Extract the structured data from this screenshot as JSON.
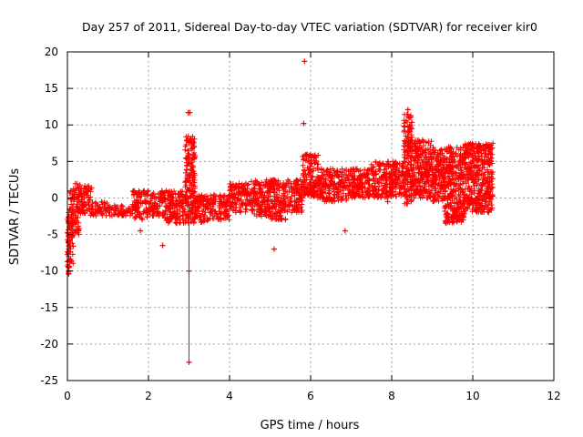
{
  "chart_data": {
    "type": "scatter",
    "title": "Day 257 of 2011, Sidereal Day-to-day VTEC variation (SDTVAR) for receiver kir0",
    "xlabel": "GPS time / hours",
    "ylabel": "SDTVAR / TECUs",
    "xlim": [
      0,
      12
    ],
    "ylim": [
      -25,
      20
    ],
    "xticks": [
      0,
      2,
      4,
      6,
      8,
      10,
      12
    ],
    "yticks": [
      -25,
      -20,
      -15,
      -10,
      -5,
      0,
      5,
      10,
      15,
      20
    ],
    "grid": true,
    "marker": "+",
    "color": "#ff0000",
    "series": [
      {
        "name": "SDTVAR",
        "bands": [
          {
            "x": [
              0.0,
              0.05
            ],
            "lo": -10.5,
            "hi": -1.5
          },
          {
            "x": [
              0.05,
              0.15
            ],
            "lo": -9.5,
            "hi": 1.0
          },
          {
            "x": [
              0.15,
              0.3
            ],
            "lo": -5.0,
            "hi": 2.0
          },
          {
            "x": [
              0.3,
              0.6
            ],
            "lo": -2.5,
            "hi": 1.8
          },
          {
            "x": [
              0.6,
              1.0
            ],
            "lo": -2.5,
            "hi": -0.5
          },
          {
            "x": [
              1.0,
              1.6
            ],
            "lo": -2.5,
            "hi": -1.0
          },
          {
            "x": [
              1.6,
              2.0
            ],
            "lo": -3.0,
            "hi": 1.0
          },
          {
            "x": [
              2.0,
              2.4
            ],
            "lo": -2.5,
            "hi": 1.0
          },
          {
            "x": [
              2.4,
              2.9
            ],
            "lo": -3.5,
            "hi": 1.0
          },
          {
            "x": [
              2.9,
              3.15
            ],
            "lo": -3.5,
            "hi": 8.5
          },
          {
            "x": [
              3.15,
              3.5
            ],
            "lo": -3.5,
            "hi": 0.5
          },
          {
            "x": [
              3.5,
              4.0
            ],
            "lo": -3.0,
            "hi": 0.5
          },
          {
            "x": [
              4.0,
              4.5
            ],
            "lo": -2.0,
            "hi": 2.0
          },
          {
            "x": [
              4.5,
              5.0
            ],
            "lo": -2.5,
            "hi": 2.5
          },
          {
            "x": [
              5.0,
              5.4
            ],
            "lo": -3.0,
            "hi": 2.5
          },
          {
            "x": [
              5.4,
              5.8
            ],
            "lo": -2.0,
            "hi": 2.5
          },
          {
            "x": [
              5.8,
              6.2
            ],
            "lo": 0.0,
            "hi": 6.0
          },
          {
            "x": [
              6.2,
              6.9
            ],
            "lo": -0.5,
            "hi": 4.0
          },
          {
            "x": [
              6.9,
              7.5
            ],
            "lo": 0.0,
            "hi": 4.0
          },
          {
            "x": [
              7.5,
              8.3
            ],
            "lo": 0.0,
            "hi": 5.0
          },
          {
            "x": [
              8.3,
              8.5
            ],
            "lo": -1.0,
            "hi": 11.5
          },
          {
            "x": [
              8.5,
              9.0
            ],
            "lo": 0.0,
            "hi": 8.0
          },
          {
            "x": [
              9.0,
              9.3
            ],
            "lo": -0.5,
            "hi": 7.0
          },
          {
            "x": [
              9.3,
              9.8
            ],
            "lo": -3.5,
            "hi": 7.0
          },
          {
            "x": [
              9.8,
              10.5
            ],
            "lo": -2.0,
            "hi": 7.5
          }
        ],
        "outliers": [
          {
            "x": 3.0,
            "y": -22.5
          },
          {
            "x": 3.0,
            "y": -10.0
          },
          {
            "x": 2.98,
            "y": 11.7
          },
          {
            "x": 3.02,
            "y": 11.7
          },
          {
            "x": 5.85,
            "y": 18.7
          },
          {
            "x": 5.83,
            "y": 10.2
          },
          {
            "x": 5.1,
            "y": -7.0
          },
          {
            "x": 6.85,
            "y": -4.5
          },
          {
            "x": 8.4,
            "y": 12.1
          },
          {
            "x": 7.9,
            "y": -0.5
          },
          {
            "x": 2.35,
            "y": -6.5
          },
          {
            "x": 1.8,
            "y": -4.5
          }
        ]
      }
    ]
  }
}
